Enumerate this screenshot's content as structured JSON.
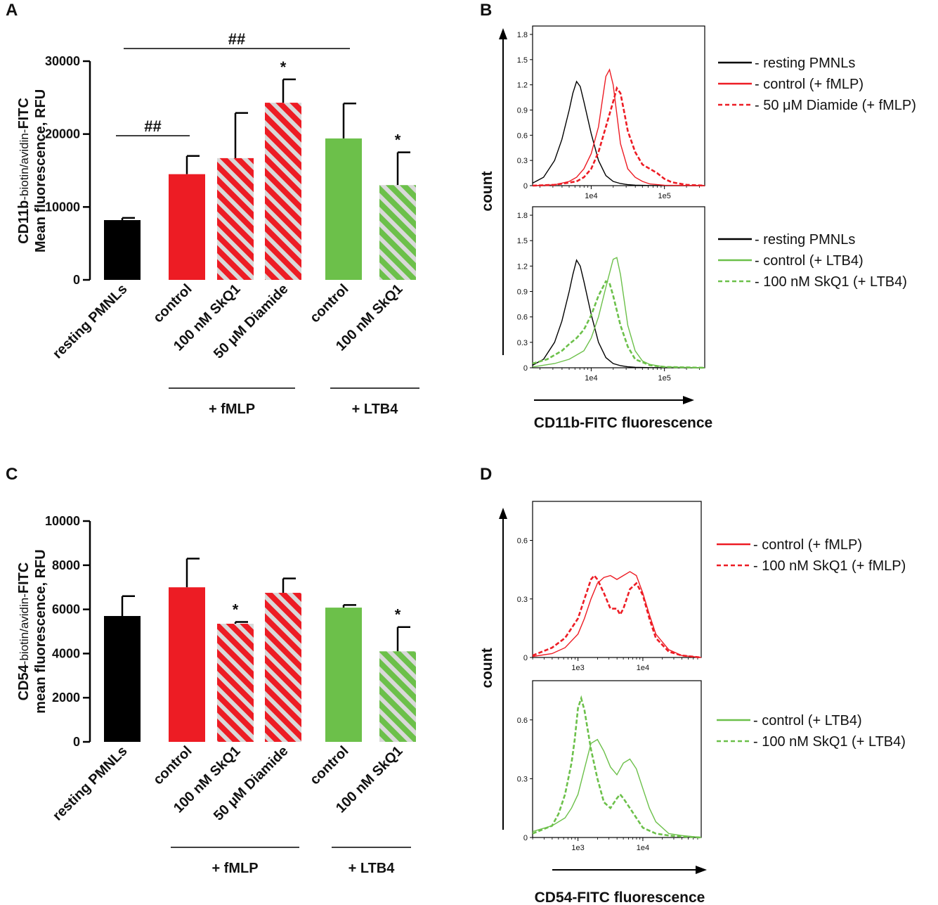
{
  "colors": {
    "black": "#000000",
    "red": "#ED1C24",
    "green": "#6CC04A",
    "stripe_light": "#D9D9D9"
  },
  "chart_data": [
    {
      "panel": "A",
      "type": "bar",
      "title": "",
      "ylabel": {
        "bold": "CD11b",
        "small": "-biotin/avidin-",
        "bold2": "FITC",
        "line2": "Mean fluorescence, RFU"
      },
      "ylim": [
        0,
        30000
      ],
      "yticks": [
        "0",
        "10000",
        "20000",
        "30000"
      ],
      "categories": [
        "resting PMNLs",
        "control",
        "100 nM SkQ1",
        "50 μM Diamide",
        "control",
        "100 nM SkQ1"
      ],
      "values": [
        8200,
        14500,
        16700,
        24300,
        19400,
        13000
      ],
      "errors": [
        300,
        2500,
        6200,
        3200,
        4800,
        4500
      ],
      "styles": [
        "black",
        "red",
        "red-hatch",
        "red-hatch",
        "green",
        "green-hatch"
      ],
      "groups": [
        "+ fMLP",
        "+ LTB4"
      ],
      "significance": [
        "*",
        "*"
      ],
      "brackets": [
        "##",
        "##"
      ]
    },
    {
      "panel": "C",
      "type": "bar",
      "title": "",
      "ylabel": {
        "bold": "CD54",
        "small": "-biotin/avidin-",
        "bold2": "FITC",
        "line2": "mean fluorescence, RFU"
      },
      "ylim": [
        0,
        10000
      ],
      "yticks": [
        "0",
        "2000",
        "4000",
        "6000",
        "8000",
        "10000"
      ],
      "categories": [
        "resting PMNLs",
        "control",
        "100 nM SkQ1",
        "50 μM Diamide",
        "control",
        "100 nM SkQ1"
      ],
      "values": [
        5700,
        7000,
        5350,
        6750,
        6080,
        4100
      ],
      "errors": [
        900,
        1300,
        80,
        650,
        120,
        1100
      ],
      "styles": [
        "black",
        "red",
        "red-hatch",
        "red-hatch",
        "green",
        "green-hatch"
      ],
      "groups": [
        "+ fMLP",
        "+ LTB4"
      ],
      "significance": [
        "*",
        "*"
      ]
    },
    {
      "panel": "B",
      "type": "line",
      "xlabel": "CD11b-FITC fluorescence",
      "ylabel": "count",
      "subplots": [
        {
          "yticks": [
            "0",
            "0.3",
            "0.6",
            "0.9",
            "1.2",
            "1.5",
            "1.8"
          ],
          "ylim": [
            0,
            1.9
          ],
          "xticks": [
            "1e4",
            "1e5"
          ],
          "xlim_log10": [
            3.2,
            5.55
          ],
          "series": [
            {
              "name": "- resting PMNLs",
              "color": "#000000",
              "dash": false,
              "x": [
                3.2,
                3.35,
                3.5,
                3.6,
                3.7,
                3.75,
                3.8,
                3.85,
                3.9,
                4.0,
                4.1,
                4.2,
                4.3,
                4.4,
                4.5,
                4.6,
                4.8,
                5.0,
                5.55
              ],
              "y": [
                0.03,
                0.1,
                0.3,
                0.55,
                0.9,
                1.1,
                1.24,
                1.18,
                1.0,
                0.62,
                0.3,
                0.12,
                0.05,
                0.025,
                0.012,
                0.006,
                0.002,
                0.001,
                0
              ]
            },
            {
              "name": "- control (+ fMLP)",
              "color": "#ED1C24",
              "dash": false,
              "x": [
                3.2,
                3.5,
                3.7,
                3.8,
                3.9,
                4.0,
                4.1,
                4.15,
                4.2,
                4.25,
                4.3,
                4.35,
                4.4,
                4.5,
                4.6,
                4.7,
                4.8,
                5.0,
                5.55
              ],
              "y": [
                0,
                0.01,
                0.05,
                0.1,
                0.2,
                0.38,
                0.7,
                1.0,
                1.3,
                1.38,
                1.2,
                0.85,
                0.5,
                0.2,
                0.1,
                0.05,
                0.02,
                0.005,
                0
              ]
            },
            {
              "name": "- 50 μM Diamide (+ fMLP)",
              "color": "#ED1C24",
              "dash": true,
              "x": [
                3.2,
                3.5,
                3.8,
                3.9,
                4.0,
                4.1,
                4.2,
                4.3,
                4.35,
                4.4,
                4.45,
                4.5,
                4.6,
                4.7,
                4.8,
                4.9,
                5.0,
                5.1,
                5.3,
                5.55
              ],
              "y": [
                0,
                0.01,
                0.05,
                0.1,
                0.2,
                0.4,
                0.7,
                1.0,
                1.16,
                1.1,
                0.88,
                0.65,
                0.4,
                0.25,
                0.2,
                0.15,
                0.08,
                0.04,
                0.01,
                0
              ]
            }
          ]
        },
        {
          "yticks": [
            "0",
            "0.3",
            "0.6",
            "0.9",
            "1.2",
            "1.5",
            "1.8"
          ],
          "ylim": [
            0,
            1.9
          ],
          "xticks": [
            "1e4",
            "1e5"
          ],
          "xlim_log10": [
            3.2,
            5.55
          ],
          "series": [
            {
              "name": "- resting PMNLs",
              "color": "#000000",
              "dash": false,
              "x": [
                3.2,
                3.35,
                3.5,
                3.6,
                3.7,
                3.75,
                3.8,
                3.85,
                3.9,
                4.0,
                4.1,
                4.2,
                4.3,
                4.4,
                4.5,
                4.6,
                4.8,
                5.0,
                5.55
              ],
              "y": [
                0.03,
                0.1,
                0.3,
                0.55,
                0.9,
                1.1,
                1.27,
                1.2,
                1.02,
                0.63,
                0.3,
                0.12,
                0.05,
                0.025,
                0.012,
                0.006,
                0.002,
                0.001,
                0
              ]
            },
            {
              "name": "- control (+ LTB4)",
              "color": "#6CC04A",
              "dash": false,
              "x": [
                3.2,
                3.5,
                3.7,
                3.9,
                4.0,
                4.1,
                4.2,
                4.3,
                4.35,
                4.4,
                4.45,
                4.5,
                4.6,
                4.7,
                4.8,
                5.0,
                5.55
              ],
              "y": [
                0.01,
                0.05,
                0.1,
                0.2,
                0.35,
                0.6,
                0.95,
                1.28,
                1.3,
                1.1,
                0.8,
                0.5,
                0.2,
                0.08,
                0.04,
                0.01,
                0
              ]
            },
            {
              "name": "- 100 nM SkQ1 (+ LTB4)",
              "color": "#6CC04A",
              "dash": true,
              "x": [
                3.2,
                3.4,
                3.6,
                3.7,
                3.8,
                3.9,
                4.0,
                4.1,
                4.2,
                4.25,
                4.3,
                4.4,
                4.5,
                4.6,
                4.8,
                5.0,
                5.55
              ],
              "y": [
                0.05,
                0.1,
                0.2,
                0.28,
                0.35,
                0.45,
                0.62,
                0.85,
                1.02,
                1.0,
                0.85,
                0.5,
                0.25,
                0.1,
                0.03,
                0.01,
                0
              ]
            }
          ]
        }
      ]
    },
    {
      "panel": "D",
      "type": "line",
      "xlabel": "CD54-FITC fluorescence",
      "ylabel": "count",
      "subplots": [
        {
          "yticks": [
            "0",
            "0.3",
            "0.6"
          ],
          "ylim": [
            0,
            0.8
          ],
          "xticks": [
            "1e3",
            "1e4"
          ],
          "xlim_log10": [
            2.3,
            4.9
          ],
          "series": [
            {
              "name": "- control (+ fMLP)",
              "color": "#ED1C24",
              "dash": false,
              "x": [
                2.3,
                2.6,
                2.8,
                3.0,
                3.1,
                3.2,
                3.3,
                3.4,
                3.5,
                3.6,
                3.7,
                3.8,
                3.9,
                4.0,
                4.1,
                4.2,
                4.4,
                4.6,
                4.9
              ],
              "y": [
                0.005,
                0.02,
                0.05,
                0.12,
                0.2,
                0.3,
                0.38,
                0.41,
                0.42,
                0.4,
                0.42,
                0.44,
                0.42,
                0.33,
                0.22,
                0.12,
                0.04,
                0.01,
                0
              ]
            },
            {
              "name": "- 100 nM SkQ1 (+ fMLP)",
              "color": "#ED1C24",
              "dash": true,
              "x": [
                2.3,
                2.6,
                2.8,
                3.0,
                3.1,
                3.2,
                3.25,
                3.3,
                3.4,
                3.5,
                3.6,
                3.65,
                3.7,
                3.8,
                3.9,
                4.0,
                4.1,
                4.2,
                4.4,
                4.6,
                4.9
              ],
              "y": [
                0.01,
                0.05,
                0.1,
                0.2,
                0.3,
                0.4,
                0.42,
                0.4,
                0.33,
                0.25,
                0.25,
                0.22,
                0.25,
                0.35,
                0.38,
                0.32,
                0.2,
                0.1,
                0.03,
                0.01,
                0
              ]
            }
          ]
        },
        {
          "yticks": [
            "0",
            "0.3",
            "0.6"
          ],
          "ylim": [
            0,
            0.8
          ],
          "xticks": [
            "1e3",
            "1e4"
          ],
          "xlim_log10": [
            2.3,
            4.9
          ],
          "series": [
            {
              "name": "- control (+ LTB4)",
              "color": "#6CC04A",
              "dash": false,
              "x": [
                2.3,
                2.6,
                2.8,
                2.9,
                3.0,
                3.1,
                3.2,
                3.3,
                3.4,
                3.5,
                3.6,
                3.7,
                3.8,
                3.9,
                4.0,
                4.1,
                4.2,
                4.4,
                4.6,
                4.9
              ],
              "y": [
                0.03,
                0.06,
                0.1,
                0.15,
                0.22,
                0.35,
                0.48,
                0.5,
                0.44,
                0.36,
                0.32,
                0.38,
                0.4,
                0.35,
                0.25,
                0.15,
                0.08,
                0.02,
                0.01,
                0
              ]
            },
            {
              "name": "- 100 nM SkQ1 (+ LTB4)",
              "color": "#6CC04A",
              "dash": true,
              "x": [
                2.3,
                2.6,
                2.7,
                2.8,
                2.9,
                2.95,
                3.0,
                3.05,
                3.1,
                3.2,
                3.3,
                3.4,
                3.5,
                3.6,
                3.65,
                3.7,
                3.8,
                3.9,
                4.0,
                4.2,
                4.4,
                4.6,
                4.9
              ],
              "y": [
                0.02,
                0.06,
                0.12,
                0.22,
                0.38,
                0.5,
                0.66,
                0.71,
                0.65,
                0.45,
                0.3,
                0.18,
                0.15,
                0.2,
                0.22,
                0.2,
                0.15,
                0.1,
                0.05,
                0.02,
                0.01,
                0.005,
                0
              ]
            }
          ]
        }
      ]
    }
  ]
}
